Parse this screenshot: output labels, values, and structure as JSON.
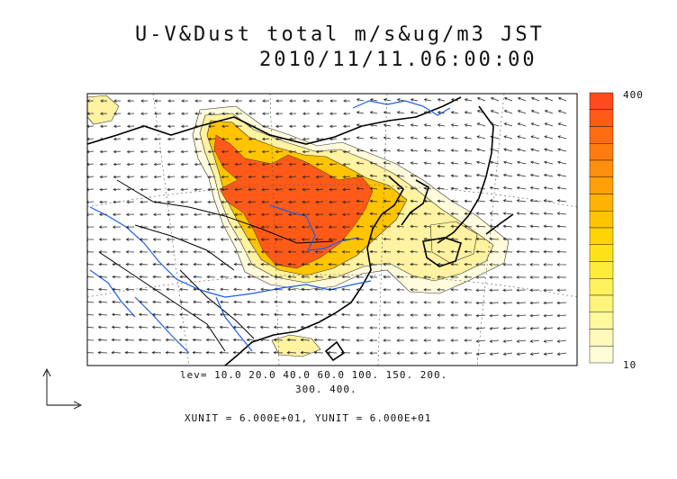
{
  "title_line1": "U-V&Dust total m/s&ug/m3 JST",
  "title_line2": "2010/11/11.06:00:00",
  "contour_levels_line1": "lev= 10.0 20.0 40.0 60.0 100. 150. 200.",
  "contour_levels_line2": "300. 400.",
  "vector_units": "XUNIT = 6.000E+01, YUNIT = 6.000E+01",
  "colorbar": {
    "max_label": "400",
    "min_label": "10",
    "colors": [
      "#ff4a1c",
      "#ff5a18",
      "#ff6c14",
      "#ff7d10",
      "#ff8e0c",
      "#ffa008",
      "#ffb204",
      "#ffc400",
      "#ffd400",
      "#ffe21a",
      "#ffec3a",
      "#fff25c",
      "#fff57c",
      "#fff89c",
      "#fffabc",
      "#fffcd8"
    ]
  },
  "colors": {
    "dust_high": "#ff4a1c",
    "dust_mid": "#ffc400",
    "dust_low": "#fff7a8",
    "dust_faint": "#fffbdc",
    "rivers": "#1a5ee8",
    "coast": "#000000"
  }
}
